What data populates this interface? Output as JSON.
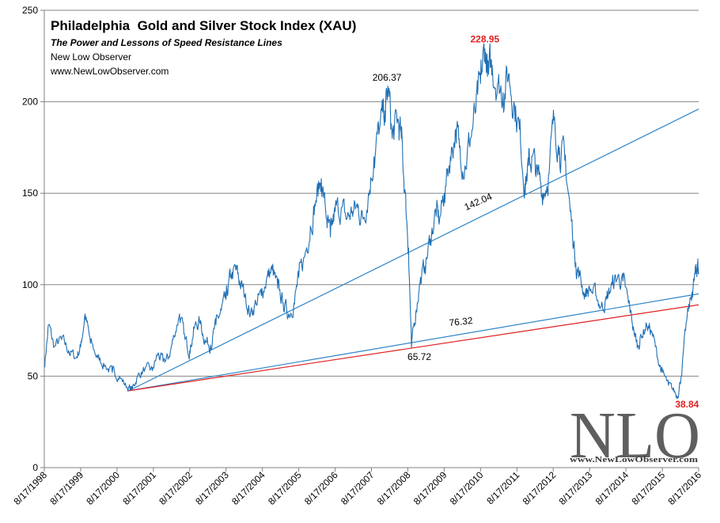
{
  "chart_data": {
    "type": "line",
    "title": "Philadelphia  Gold and Silver Stock Index (XAU)",
    "subtitle": "The Power and Lessons of Speed Resistance Lines",
    "author": "New Low Observer",
    "website": "www.NewLowObserver.com",
    "ylim": [
      0,
      250
    ],
    "yticks": [
      0,
      50,
      100,
      150,
      200,
      250
    ],
    "ytick_labels": [
      "0",
      "50",
      "100",
      "150",
      "200",
      "250"
    ],
    "xlim": [
      1998.63,
      2016.63
    ],
    "x_tick_positions": [
      1998.63,
      1999.63,
      2000.63,
      2001.63,
      2002.63,
      2003.63,
      2004.63,
      2005.63,
      2006.63,
      2007.63,
      2008.63,
      2009.63,
      2010.63,
      2011.63,
      2012.63,
      2013.63,
      2014.63,
      2015.63,
      2016.63
    ],
    "x_tick_labels": [
      "8/17/1998",
      "8/17/1999",
      "8/17/2000",
      "8/17/2001",
      "8/17/2002",
      "8/17/2003",
      "8/17/2004",
      "8/17/2005",
      "8/17/2006",
      "8/17/2007",
      "8/17/2008",
      "8/17/2009",
      "8/17/2010",
      "8/17/2011",
      "8/17/2012",
      "8/17/2013",
      "8/17/2014",
      "8/17/2015",
      "8/17/2016"
    ],
    "series": [
      {
        "name": "XAU",
        "color": "#1f6fb4",
        "points": [
          [
            1998.63,
            55
          ],
          [
            1998.75,
            78
          ],
          [
            1998.9,
            66
          ],
          [
            1999.1,
            70
          ],
          [
            1999.3,
            64
          ],
          [
            1999.5,
            60
          ],
          [
            1999.63,
            66
          ],
          [
            1999.75,
            84
          ],
          [
            1999.9,
            68
          ],
          [
            2000.1,
            60
          ],
          [
            2000.3,
            56
          ],
          [
            2000.5,
            52
          ],
          [
            2000.7,
            50
          ],
          [
            2000.9,
            44
          ],
          [
            2001.05,
            43
          ],
          [
            2001.2,
            50
          ],
          [
            2001.4,
            54
          ],
          [
            2001.6,
            53
          ],
          [
            2001.75,
            62
          ],
          [
            2001.9,
            58
          ],
          [
            2002.05,
            60
          ],
          [
            2002.2,
            72
          ],
          [
            2002.35,
            84
          ],
          [
            2002.5,
            70
          ],
          [
            2002.63,
            64
          ],
          [
            2002.75,
            76
          ],
          [
            2002.9,
            80
          ],
          [
            2003.05,
            70
          ],
          [
            2003.2,
            67
          ],
          [
            2003.35,
            78
          ],
          [
            2003.5,
            86
          ],
          [
            2003.63,
            92
          ],
          [
            2003.75,
            104
          ],
          [
            2003.9,
            108
          ],
          [
            2004.0,
            102
          ],
          [
            2004.15,
            94
          ],
          [
            2004.3,
            84
          ],
          [
            2004.45,
            90
          ],
          [
            2004.6,
            94
          ],
          [
            2004.75,
            104
          ],
          [
            2004.9,
            108
          ],
          [
            2005.05,
            98
          ],
          [
            2005.2,
            90
          ],
          [
            2005.35,
            84
          ],
          [
            2005.5,
            90
          ],
          [
            2005.63,
            104
          ],
          [
            2005.8,
            116
          ],
          [
            2005.95,
            132
          ],
          [
            2006.1,
            146
          ],
          [
            2006.25,
            158
          ],
          [
            2006.4,
            136
          ],
          [
            2006.5,
            126
          ],
          [
            2006.63,
            140
          ],
          [
            2006.8,
            142
          ],
          [
            2006.95,
            136
          ],
          [
            2007.1,
            140
          ],
          [
            2007.25,
            142
          ],
          [
            2007.4,
            136
          ],
          [
            2007.55,
            150
          ],
          [
            2007.7,
            170
          ],
          [
            2007.85,
            185
          ],
          [
            2008.0,
            195
          ],
          [
            2008.1,
            206.37
          ],
          [
            2008.2,
            180
          ],
          [
            2008.35,
            190
          ],
          [
            2008.45,
            180
          ],
          [
            2008.55,
            152
          ],
          [
            2008.65,
            120
          ],
          [
            2008.73,
            65.72
          ],
          [
            2008.85,
            85
          ],
          [
            2008.95,
            100
          ],
          [
            2009.1,
            110
          ],
          [
            2009.25,
            125
          ],
          [
            2009.4,
            140
          ],
          [
            2009.5,
            135
          ],
          [
            2009.63,
            150
          ],
          [
            2009.8,
            170
          ],
          [
            2009.95,
            185
          ],
          [
            2010.05,
            175
          ],
          [
            2010.2,
            165
          ],
          [
            2010.35,
            180
          ],
          [
            2010.5,
            195
          ],
          [
            2010.63,
            210
          ],
          [
            2010.75,
            228.95
          ],
          [
            2010.85,
            215
          ],
          [
            2010.95,
            220
          ],
          [
            2011.1,
            210
          ],
          [
            2011.25,
            205
          ],
          [
            2011.4,
            215
          ],
          [
            2011.55,
            200
          ],
          [
            2011.7,
            185
          ],
          [
            2011.85,
            155
          ],
          [
            2011.95,
            165
          ],
          [
            2012.05,
            170
          ],
          [
            2012.2,
            160
          ],
          [
            2012.35,
            150
          ],
          [
            2012.5,
            160
          ],
          [
            2012.65,
            190
          ],
          [
            2012.8,
            175
          ],
          [
            2012.95,
            168
          ],
          [
            2013.1,
            140
          ],
          [
            2013.25,
            112
          ],
          [
            2013.35,
            105
          ],
          [
            2013.5,
            95
          ],
          [
            2013.63,
            98
          ],
          [
            2013.8,
            94
          ],
          [
            2013.95,
            88
          ],
          [
            2014.1,
            92
          ],
          [
            2014.25,
            100
          ],
          [
            2014.4,
            104
          ],
          [
            2014.55,
            102
          ],
          [
            2014.7,
            90
          ],
          [
            2014.85,
            75
          ],
          [
            2014.95,
            66
          ],
          [
            2015.05,
            72
          ],
          [
            2015.2,
            78
          ],
          [
            2015.35,
            74
          ],
          [
            2015.5,
            60
          ],
          [
            2015.63,
            52
          ],
          [
            2015.8,
            45
          ],
          [
            2015.95,
            42
          ],
          [
            2016.05,
            38.84
          ],
          [
            2016.15,
            50
          ],
          [
            2016.3,
            80
          ],
          [
            2016.45,
            96
          ],
          [
            2016.55,
            106
          ],
          [
            2016.6,
            112
          ],
          [
            2016.63,
            106
          ]
        ]
      }
    ],
    "trend_lines": [
      {
        "name": "speed-line-upper",
        "color": "#2f86c8",
        "from": [
          2000.95,
          42
        ],
        "to": [
          2016.63,
          196
        ]
      },
      {
        "name": "speed-line-lower",
        "color": "#2f86c8",
        "from": [
          2000.95,
          42
        ],
        "to": [
          2016.63,
          95
        ]
      },
      {
        "name": "speed-line-red",
        "color": "#e02020",
        "from": [
          2000.95,
          42
        ],
        "to": [
          2016.63,
          89
        ]
      }
    ],
    "annotations": [
      {
        "text": "206.37",
        "x": 2008.1,
        "y": 206.37,
        "color": "#000000"
      },
      {
        "text": "228.95",
        "x": 2010.75,
        "y": 228.95,
        "color": "#e02020",
        "bold": true
      },
      {
        "text": "65.72",
        "x": 2008.73,
        "y": 65.72,
        "color": "#000000"
      },
      {
        "text": "142.04",
        "x": 2010.6,
        "y": 142.04,
        "color": "#000000"
      },
      {
        "text": "76.32",
        "x": 2010.1,
        "y": 76.32,
        "color": "#000000"
      },
      {
        "text": "38.84",
        "x": 2016.05,
        "y": 38.84,
        "color": "#e02020",
        "bold": true
      }
    ],
    "grid": true,
    "watermark": {
      "text": "NLO",
      "url": "www.NewLowObserver.com"
    }
  }
}
